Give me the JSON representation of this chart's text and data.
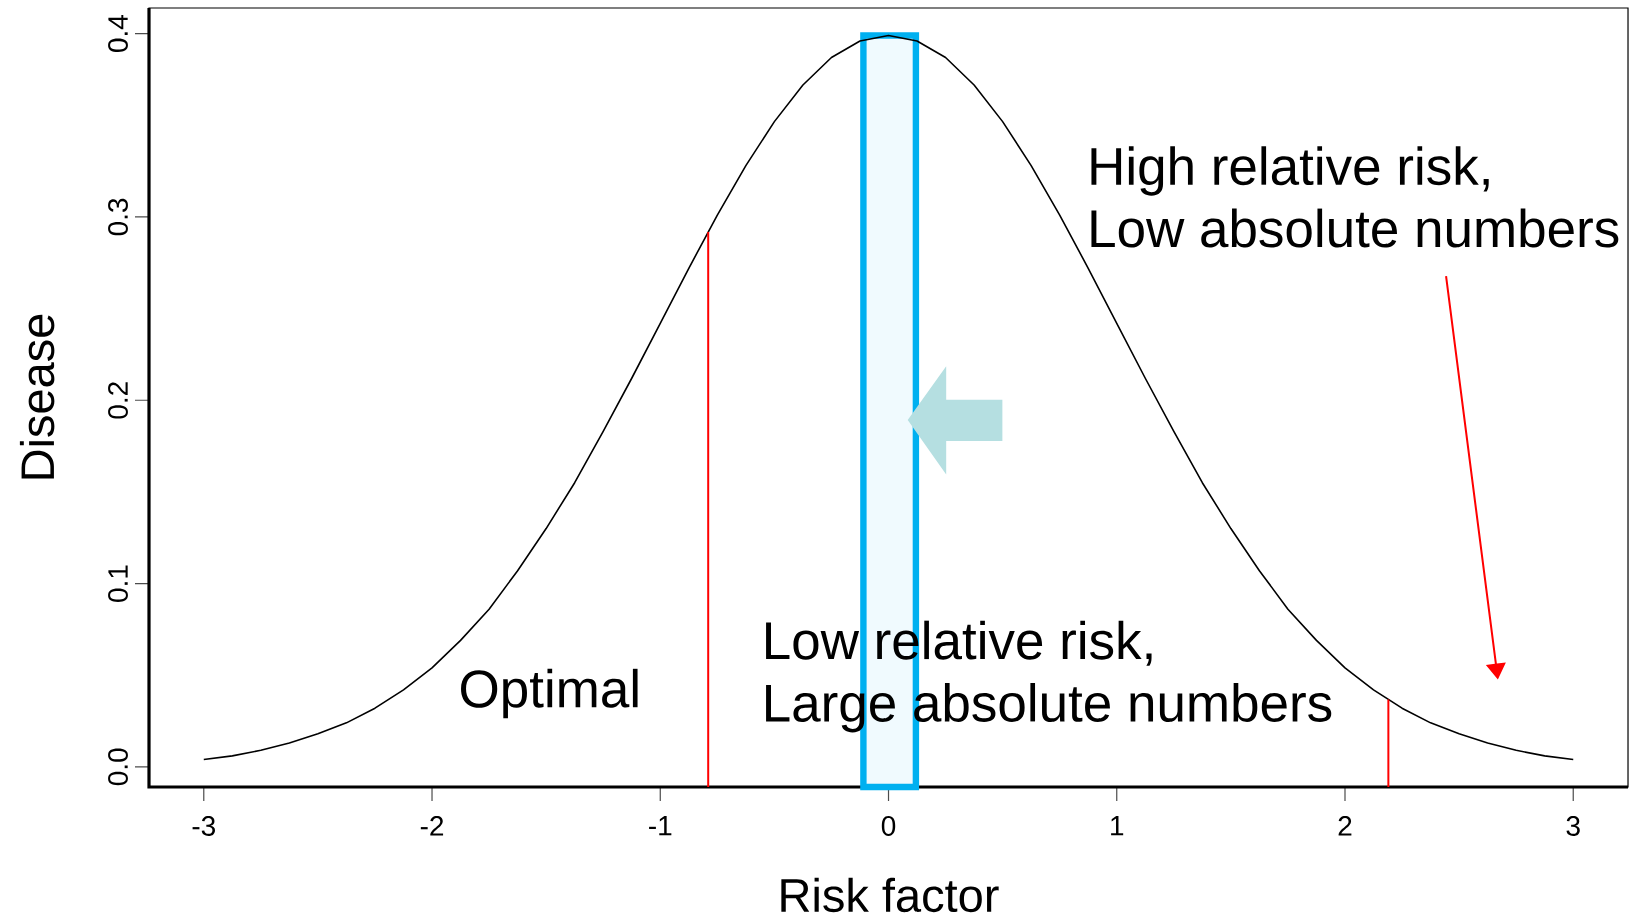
{
  "chart_data": {
    "type": "line",
    "xlabel": "Risk factor",
    "ylabel": "Disease",
    "x": [
      -3,
      -2.875,
      -2.75,
      -2.625,
      -2.5,
      -2.375,
      -2.25,
      -2.125,
      -2,
      -1.875,
      -1.75,
      -1.625,
      -1.5,
      -1.375,
      -1.25,
      -1.125,
      -1,
      -0.875,
      -0.75,
      -0.625,
      -0.5,
      -0.375,
      -0.25,
      -0.125,
      0,
      0.125,
      0.25,
      0.375,
      0.5,
      0.625,
      0.75,
      0.875,
      1,
      1.125,
      1.25,
      1.375,
      1.5,
      1.625,
      1.75,
      1.875,
      2,
      2.125,
      2.25,
      2.375,
      2.5,
      2.625,
      2.75,
      2.875,
      3
    ],
    "series": [
      {
        "color": "#000000",
        "values": [
          0.004,
          0.006,
          0.009,
          0.013,
          0.018,
          0.024,
          0.032,
          0.042,
          0.054,
          0.069,
          0.086,
          0.107,
          0.13,
          0.155,
          0.183,
          0.212,
          0.242,
          0.272,
          0.301,
          0.328,
          0.352,
          0.372,
          0.387,
          0.396,
          0.399,
          0.396,
          0.387,
          0.372,
          0.352,
          0.328,
          0.301,
          0.272,
          0.242,
          0.212,
          0.183,
          0.155,
          0.13,
          0.107,
          0.086,
          0.069,
          0.054,
          0.042,
          0.032,
          0.024,
          0.018,
          0.013,
          0.009,
          0.006,
          0.004
        ]
      }
    ],
    "xlim": [
      -3.24,
      3.24
    ],
    "ylim": [
      -0.011,
      0.414
    ],
    "xticks": [
      -3,
      -2,
      -1,
      0,
      1,
      2,
      3
    ],
    "yticks": [
      {
        "value": 0,
        "label": "0.0"
      },
      {
        "value": 0.1,
        "label": "0.1"
      },
      {
        "value": 0.2,
        "label": "0.2"
      },
      {
        "value": 0.3,
        "label": "0.3"
      },
      {
        "value": 0.4,
        "label": "0.4"
      }
    ],
    "ref_lines": [
      {
        "axis": "x",
        "value": -0.79,
        "color": "#ff0000"
      },
      {
        "axis": "x",
        "value": 2.19,
        "color": "#ff0000"
      }
    ],
    "bands": [
      {
        "axis": "x",
        "from": -0.11,
        "to": 0.12,
        "color": "#00b0f0"
      }
    ],
    "annotations": [
      "Optimal",
      "Low relative risk,",
      "Large absolute numbers",
      "High relative risk,",
      "Low absolute numbers"
    ],
    "grid": false
  }
}
